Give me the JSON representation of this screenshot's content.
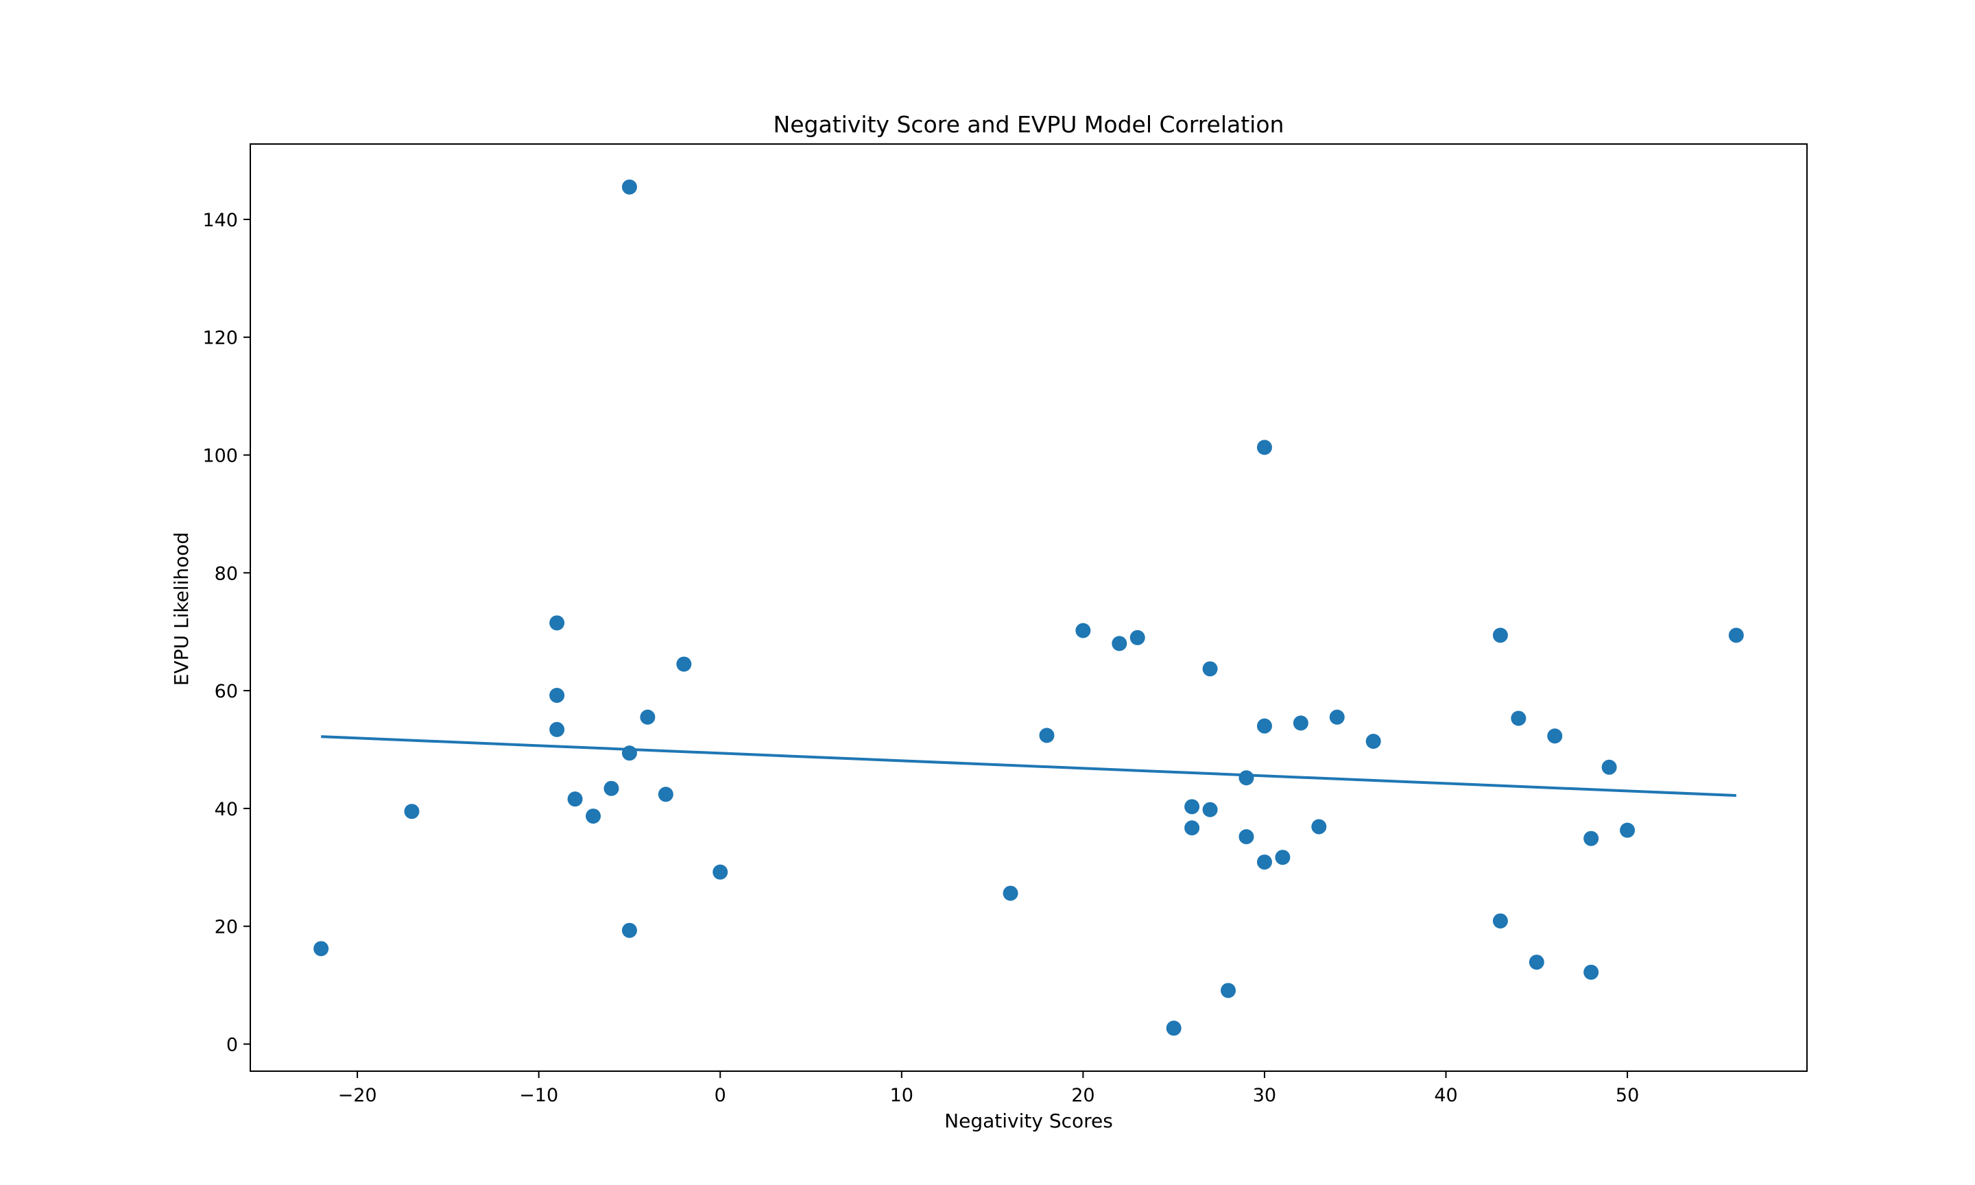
{
  "chart_data": {
    "type": "scatter",
    "title": "Negativity Score and EVPU Model Correlation",
    "xlabel": "Negativity Scores",
    "ylabel": "EVPU Likelihood",
    "xlim": [
      -25.9,
      59.9
    ],
    "ylim": [
      -4.6,
      152.8
    ],
    "xticks": [
      -20,
      -10,
      0,
      10,
      20,
      30,
      40,
      50
    ],
    "yticks": [
      0,
      20,
      40,
      60,
      80,
      100,
      120,
      140
    ],
    "grid": false,
    "legend": "none",
    "colors": {
      "points": "#1f77b4",
      "trendline": "#1f77b4",
      "axes": "#000000"
    },
    "points": [
      {
        "x": -22,
        "y": 16.2
      },
      {
        "x": -17,
        "y": 39.5
      },
      {
        "x": -9,
        "y": 71.5
      },
      {
        "x": -9,
        "y": 59.2
      },
      {
        "x": -9,
        "y": 53.4
      },
      {
        "x": -8,
        "y": 41.6
      },
      {
        "x": -7,
        "y": 38.7
      },
      {
        "x": -6,
        "y": 43.4
      },
      {
        "x": -5,
        "y": 145.5
      },
      {
        "x": -5,
        "y": 49.4
      },
      {
        "x": -5,
        "y": 19.3
      },
      {
        "x": -4,
        "y": 55.5
      },
      {
        "x": -3,
        "y": 42.4
      },
      {
        "x": -2,
        "y": 64.5
      },
      {
        "x": 0,
        "y": 29.2
      },
      {
        "x": 16,
        "y": 25.6
      },
      {
        "x": 18,
        "y": 52.4
      },
      {
        "x": 20,
        "y": 70.2
      },
      {
        "x": 22,
        "y": 68.0
      },
      {
        "x": 23,
        "y": 69.0
      },
      {
        "x": 25,
        "y": 2.7
      },
      {
        "x": 26,
        "y": 40.3
      },
      {
        "x": 26,
        "y": 36.7
      },
      {
        "x": 27,
        "y": 63.7
      },
      {
        "x": 27,
        "y": 39.8
      },
      {
        "x": 28,
        "y": 9.1
      },
      {
        "x": 29,
        "y": 45.2
      },
      {
        "x": 29,
        "y": 35.2
      },
      {
        "x": 30,
        "y": 101.3
      },
      {
        "x": 30,
        "y": 54.0
      },
      {
        "x": 30,
        "y": 30.9
      },
      {
        "x": 31,
        "y": 31.7
      },
      {
        "x": 32,
        "y": 54.5
      },
      {
        "x": 33,
        "y": 36.9
      },
      {
        "x": 34,
        "y": 55.5
      },
      {
        "x": 36,
        "y": 51.4
      },
      {
        "x": 43,
        "y": 69.4
      },
      {
        "x": 43,
        "y": 20.9
      },
      {
        "x": 44,
        "y": 55.3
      },
      {
        "x": 45,
        "y": 13.9
      },
      {
        "x": 46,
        "y": 52.3
      },
      {
        "x": 48,
        "y": 34.9
      },
      {
        "x": 48,
        "y": 12.2
      },
      {
        "x": 49,
        "y": 47.0
      },
      {
        "x": 50,
        "y": 36.3
      },
      {
        "x": 56,
        "y": 69.4
      }
    ],
    "trendline": {
      "x": [
        -22,
        56
      ],
      "y": [
        52.2,
        42.2
      ]
    }
  }
}
